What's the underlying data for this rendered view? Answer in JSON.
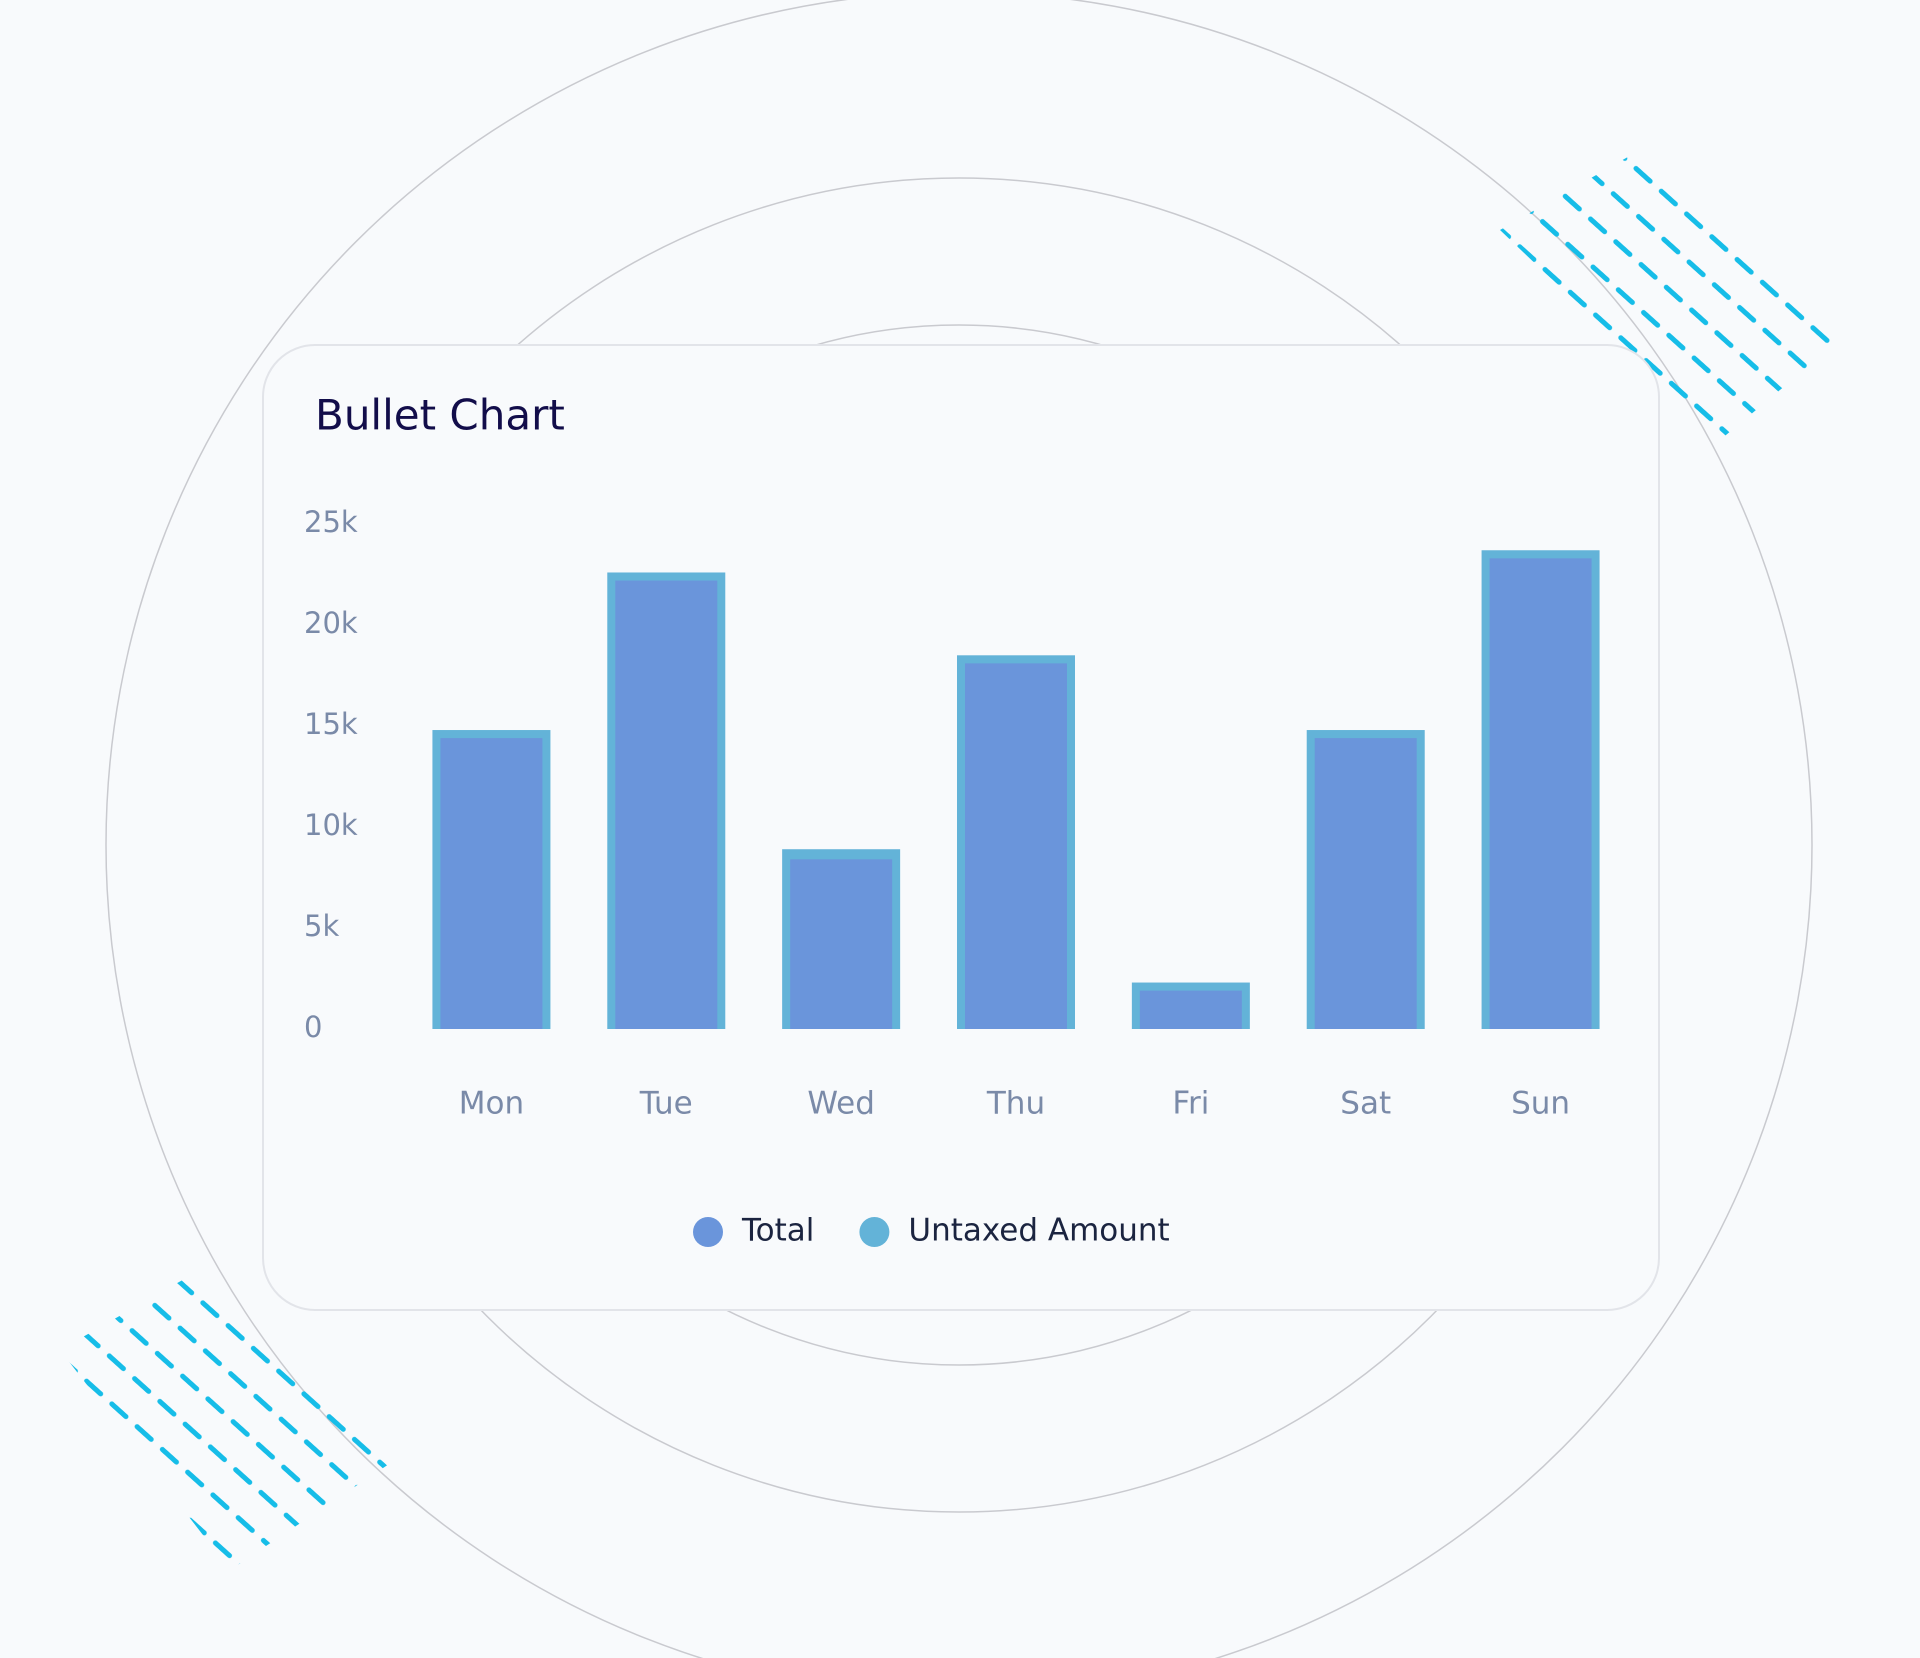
{
  "chart_data": {
    "type": "bullet",
    "title": "Bullet Chart",
    "categories": [
      "Mon",
      "Tue",
      "Wed",
      "Thu",
      "Fri",
      "Sat",
      "Sun"
    ],
    "series": [
      {
        "name": "Total",
        "color": "#6a95db",
        "values": [
          14400,
          22200,
          8400,
          18100,
          1900,
          14400,
          23300
        ]
      },
      {
        "name": "Untaxed Amount",
        "color": "#63b3d8",
        "values": [
          14800,
          22600,
          8900,
          18500,
          2300,
          14800,
          23700
        ]
      }
    ],
    "ylim": [
      0,
      25000
    ],
    "yticks": [
      0,
      {
        "value": 5000,
        "label": "5k"
      },
      {
        "value": 10000,
        "label": "10k"
      },
      {
        "value": 15000,
        "label": "15k"
      },
      {
        "value": 20000,
        "label": "20k"
      },
      {
        "value": 25000,
        "label": "25k"
      }
    ],
    "grid": false
  }
}
